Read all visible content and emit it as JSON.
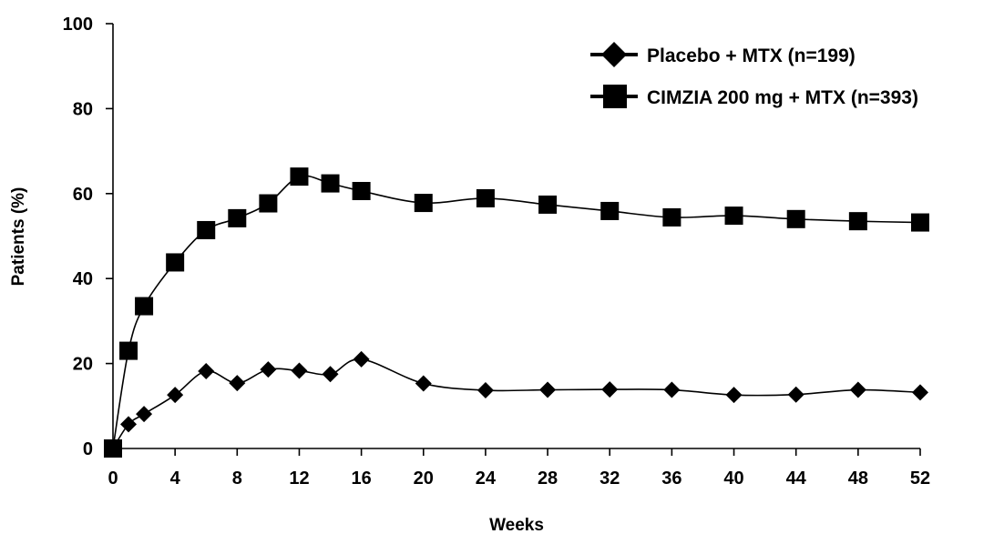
{
  "chart_data": {
    "type": "line",
    "title": "",
    "xlabel": "Weeks",
    "ylabel": "Patients (%)",
    "xlim": [
      0,
      52
    ],
    "ylim": [
      0,
      100
    ],
    "x_ticks": [
      0,
      4,
      8,
      12,
      16,
      20,
      24,
      28,
      32,
      36,
      40,
      44,
      48,
      52
    ],
    "y_ticks": [
      0,
      20,
      40,
      60,
      80,
      100
    ],
    "grid": false,
    "legend_position": "top-right",
    "series": [
      {
        "name": "Placebo + MTX (n=199)",
        "marker": "diamond",
        "color": "#000000",
        "x": [
          0,
          1,
          2,
          4,
          6,
          8,
          10,
          12,
          14,
          16,
          20,
          24,
          28,
          32,
          36,
          40,
          44,
          48,
          52
        ],
        "y": [
          0,
          5.7,
          8.1,
          12.6,
          18.2,
          15.4,
          18.6,
          18.3,
          17.5,
          21.0,
          15.3,
          13.7,
          13.8,
          13.9,
          13.8,
          12.6,
          12.7,
          13.8,
          13.2
        ]
      },
      {
        "name": "CIMZIA 200 mg + MTX (n=393)",
        "marker": "square",
        "color": "#000000",
        "x": [
          0,
          1,
          2,
          4,
          6,
          8,
          10,
          12,
          14,
          16,
          20,
          24,
          28,
          32,
          36,
          40,
          44,
          48,
          52
        ],
        "y": [
          0,
          23.0,
          33.5,
          43.8,
          51.4,
          54.2,
          57.7,
          64.0,
          62.4,
          60.6,
          57.8,
          58.9,
          57.4,
          55.9,
          54.4,
          54.8,
          54.0,
          53.5,
          53.2
        ]
      }
    ]
  }
}
